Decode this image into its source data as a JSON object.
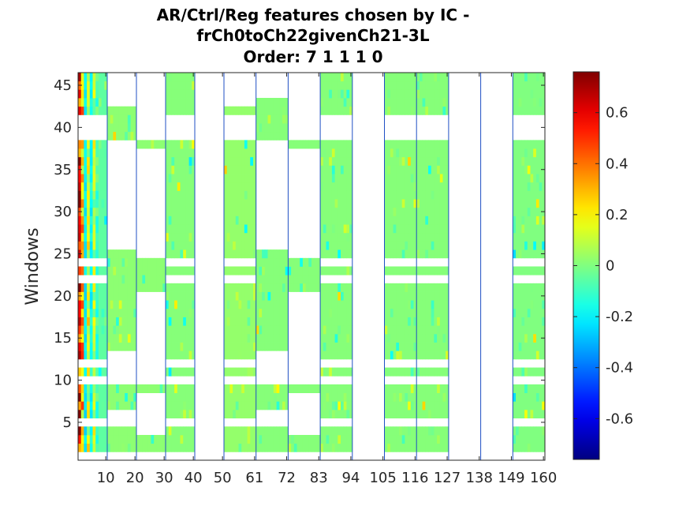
{
  "chart_data": {
    "type": "heatmap",
    "title_lines": [
      "AR/Ctrl/Reg features chosen by IC -",
      "frCh0toCh22givenCh21-3L",
      "Order: 7 1 1 1 0"
    ],
    "ylabel": "Windows",
    "xlabel": "",
    "xlim": [
      0.5,
      160.5
    ],
    "ylim": [
      0.5,
      46.5
    ],
    "x_ticks": [
      10,
      20,
      30,
      40,
      50,
      61,
      72,
      83,
      94,
      105,
      116,
      127,
      138,
      149,
      160
    ],
    "x_tick_labels": [
      "10",
      "20",
      "30",
      "40",
      "50",
      "61",
      "72",
      "83",
      "94",
      "105",
      "116",
      "127",
      "138",
      "149",
      "160"
    ],
    "y_ticks": [
      5,
      10,
      15,
      20,
      25,
      30,
      35,
      40,
      45
    ],
    "y_tick_labels": [
      "5",
      "10",
      "15",
      "20",
      "25",
      "30",
      "35",
      "40",
      "45"
    ],
    "colorbar": {
      "colormap": "jet",
      "clim": [
        -0.76,
        0.76
      ],
      "ticks": [
        -0.6,
        -0.4,
        -0.2,
        0,
        0.2,
        0.4,
        0.6
      ],
      "tick_labels": [
        "-0.6",
        "-0.4",
        "-0.2",
        "0",
        "0.2",
        "0.4",
        "0.6"
      ]
    },
    "channel_boundaries": [
      10,
      20,
      30,
      40,
      50,
      61,
      72,
      83,
      94,
      105,
      116,
      127,
      138,
      149,
      160
    ],
    "column_groups": [
      {
        "x": [
          1,
          10
        ],
        "windows": [
          [
            2,
            4
          ],
          [
            6,
            9
          ],
          [
            11,
            11
          ],
          [
            13,
            21
          ],
          [
            23,
            23
          ],
          [
            25,
            38
          ],
          [
            42,
            46
          ]
        ],
        "coef_value": -0.05
      },
      {
        "x": [
          11,
          20
        ],
        "windows": [
          [
            2,
            4
          ],
          [
            7,
            9
          ],
          [
            14,
            25
          ],
          [
            39,
            42
          ]
        ],
        "coef_value": 0.02
      },
      {
        "x": [
          21,
          30
        ],
        "windows": [
          [
            2,
            3
          ],
          [
            9,
            9
          ],
          [
            21,
            24
          ],
          [
            38,
            38
          ]
        ],
        "coef_value": 0.02
      },
      {
        "x": [
          31,
          40
        ],
        "windows": [
          [
            2,
            4
          ],
          [
            6,
            9
          ],
          [
            11,
            11
          ],
          [
            13,
            21
          ],
          [
            23,
            23
          ],
          [
            25,
            38
          ],
          [
            42,
            46
          ]
        ],
        "coef_value": 0.01
      },
      {
        "x": [
          41,
          50
        ],
        "windows": [],
        "coef_value": 0
      },
      {
        "x": [
          51,
          61
        ],
        "windows": [
          [
            2,
            4
          ],
          [
            6,
            9
          ],
          [
            11,
            11
          ],
          [
            13,
            21
          ],
          [
            23,
            23
          ],
          [
            25,
            38
          ],
          [
            42,
            42
          ]
        ],
        "coef_value": 0.03
      },
      {
        "x": [
          62,
          72
        ],
        "windows": [
          [
            2,
            4
          ],
          [
            7,
            9
          ],
          [
            14,
            25
          ],
          [
            39,
            43
          ]
        ],
        "coef_value": 0.01
      },
      {
        "x": [
          73,
          83
        ],
        "windows": [
          [
            2,
            3
          ],
          [
            9,
            9
          ],
          [
            21,
            24
          ],
          [
            38,
            38
          ]
        ],
        "coef_value": 0.01
      },
      {
        "x": [
          84,
          94
        ],
        "windows": [
          [
            2,
            4
          ],
          [
            6,
            9
          ],
          [
            11,
            11
          ],
          [
            13,
            21
          ],
          [
            23,
            23
          ],
          [
            25,
            38
          ],
          [
            42,
            46
          ]
        ],
        "coef_value": 0.01
      },
      {
        "x": [
          95,
          105
        ],
        "windows": [],
        "coef_value": 0
      },
      {
        "x": [
          106,
          116
        ],
        "windows": [
          [
            2,
            4
          ],
          [
            6,
            9
          ],
          [
            11,
            11
          ],
          [
            13,
            21
          ],
          [
            23,
            23
          ],
          [
            25,
            38
          ],
          [
            42,
            46
          ]
        ],
        "coef_value": 0.01
      },
      {
        "x": [
          117,
          127
        ],
        "windows": [
          [
            2,
            4
          ],
          [
            6,
            9
          ],
          [
            11,
            11
          ],
          [
            13,
            21
          ],
          [
            23,
            23
          ],
          [
            25,
            38
          ],
          [
            42,
            46
          ]
        ],
        "coef_value": 0.01
      },
      {
        "x": [
          128,
          138
        ],
        "windows": [],
        "coef_value": 0
      },
      {
        "x": [
          139,
          149
        ],
        "windows": [],
        "coef_value": 0
      },
      {
        "x": [
          150,
          160
        ],
        "windows": [
          [
            2,
            4
          ],
          [
            6,
            9
          ],
          [
            11,
            11
          ],
          [
            13,
            21
          ],
          [
            23,
            23
          ],
          [
            25,
            38
          ],
          [
            42,
            46
          ]
        ],
        "coef_value": 0.0
      }
    ],
    "ar_columns": {
      "x": [
        1,
        7
      ],
      "values_by_lag": [
        0.7,
        0.35,
        -0.25,
        0.15,
        -0.2,
        0.1,
        -0.1
      ]
    },
    "grid": false,
    "legend": "none"
  }
}
